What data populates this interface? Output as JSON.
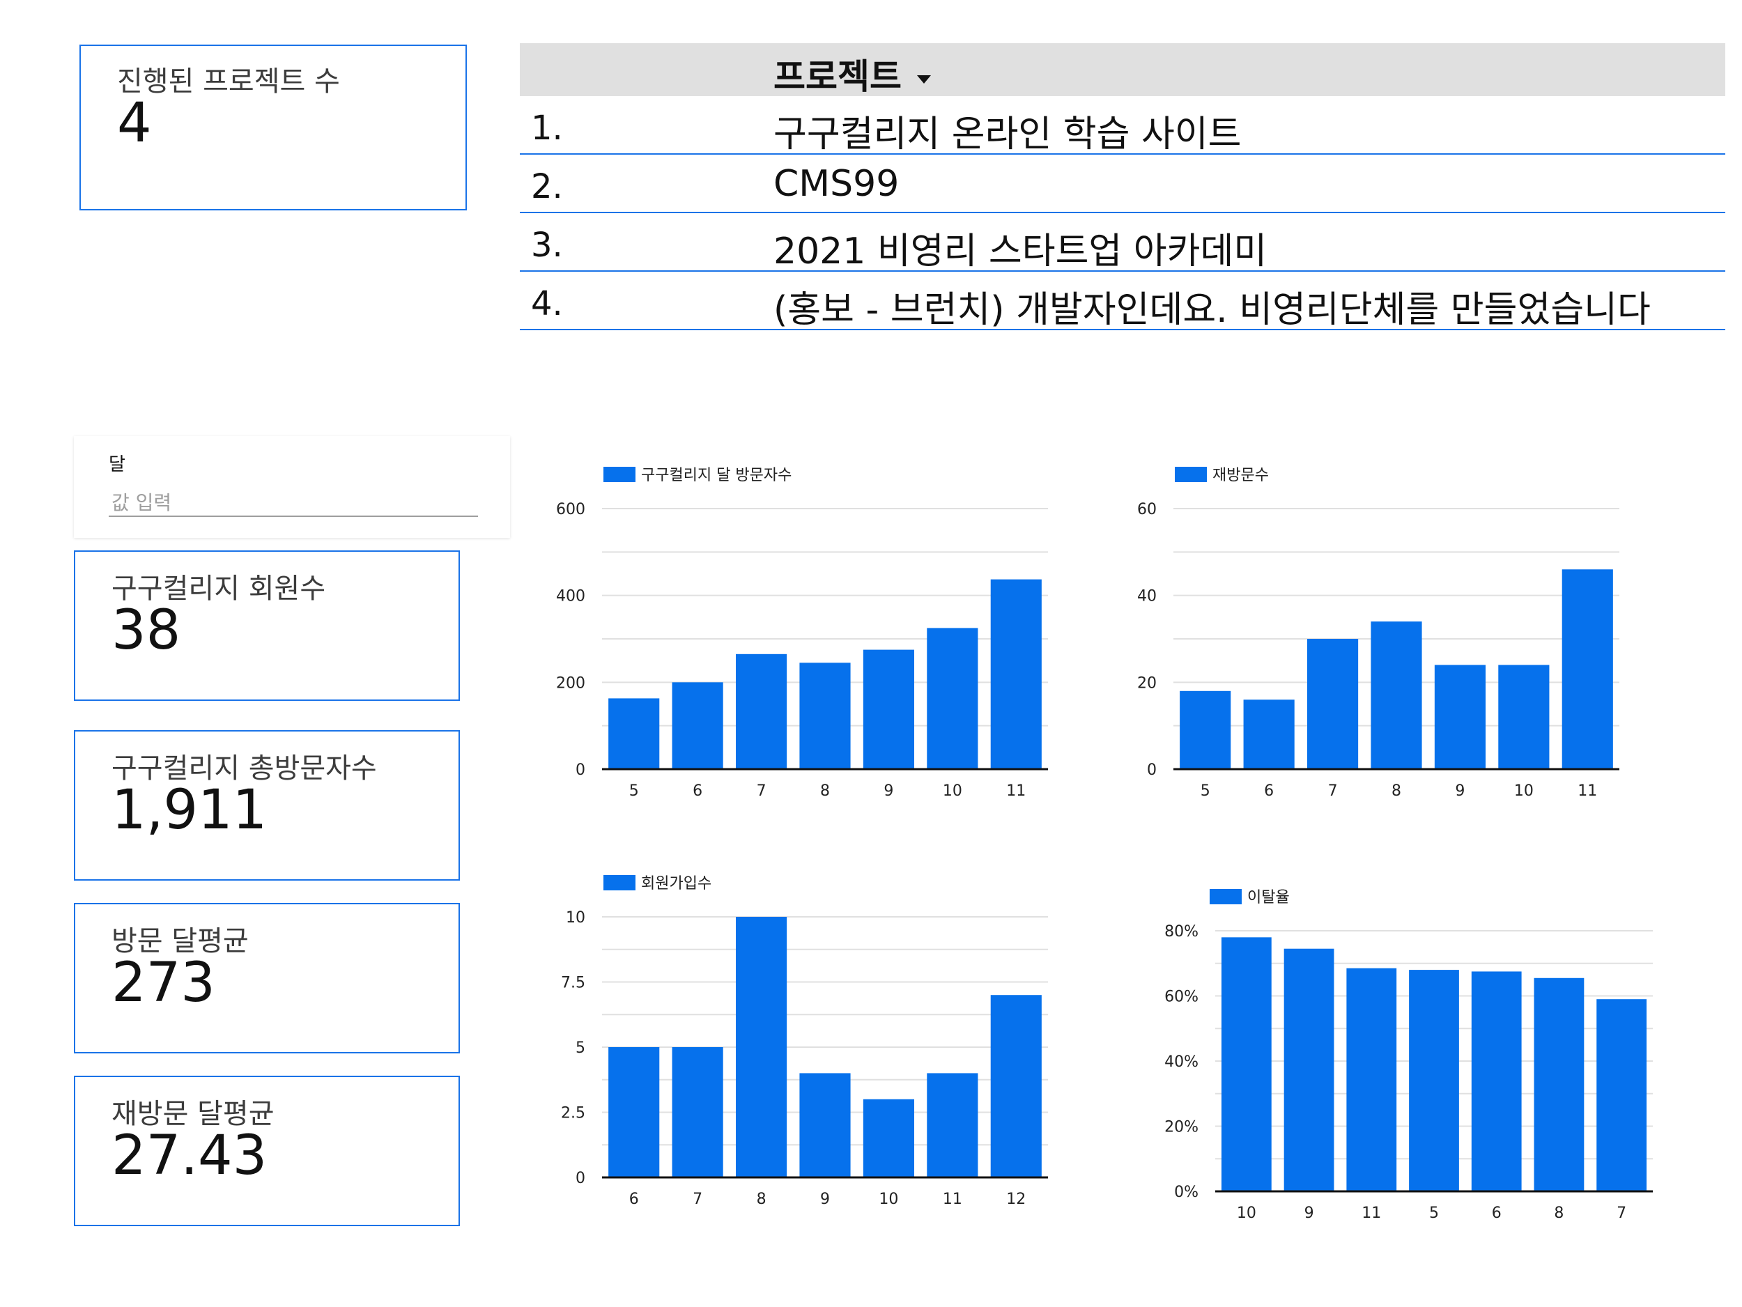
{
  "scorecards": {
    "projects": {
      "label": "진행된 프로젝트 수",
      "value": "4"
    },
    "members": {
      "label": "구구컬리지 회원수",
      "value": "38"
    },
    "total_visitors": {
      "label": "구구컬리지 총방문자수",
      "value": "1,911"
    },
    "visit_avg": {
      "label": "방문 달평균",
      "value": "273"
    },
    "revisit_avg": {
      "label": "재방문 달평균",
      "value": "27.43"
    }
  },
  "project_table": {
    "header": "프로젝트",
    "rows": [
      {
        "index": "1.",
        "name": "구구컬리지 온라인 학습 사이트"
      },
      {
        "index": "2.",
        "name": "CMS99"
      },
      {
        "index": "3.",
        "name": "2021 비영리 스타트업 아카데미"
      },
      {
        "index": "4.",
        "name": "(홍보 - 브런치) 개발자인데요. 비영리단체를 만들었습니다"
      }
    ]
  },
  "filter": {
    "label": "달",
    "placeholder": "값 입력",
    "value": ""
  },
  "colors": {
    "bar": "#0671ec",
    "grid": "#e0e0e0",
    "axis": "#111111",
    "scorecard_border": "#1a73e8",
    "table_header_bg": "#e0e0e0"
  },
  "chart_data": [
    {
      "id": "chart-visitors",
      "type": "bar",
      "legend": "구구컬리지 달 방문자수",
      "categories": [
        "5",
        "6",
        "7",
        "8",
        "9",
        "10",
        "11"
      ],
      "series": [
        {
          "name": "구구컬리지 달 방문자수",
          "values": [
            163,
            200,
            265,
            245,
            275,
            325,
            437
          ]
        }
      ],
      "yticks": [
        "0",
        "200",
        "400",
        "600"
      ],
      "ylim": [
        0,
        600
      ],
      "grid": true
    },
    {
      "id": "chart-revisits",
      "type": "bar",
      "legend": "재방문수",
      "categories": [
        "5",
        "6",
        "7",
        "8",
        "9",
        "10",
        "11"
      ],
      "series": [
        {
          "name": "재방문수",
          "values": [
            18,
            16,
            30,
            34,
            24,
            24,
            46
          ]
        }
      ],
      "yticks": [
        "0",
        "20",
        "40",
        "60"
      ],
      "ylim": [
        0,
        60
      ],
      "grid": true
    },
    {
      "id": "chart-signups",
      "type": "bar",
      "legend": "회원가입수",
      "categories": [
        "6",
        "7",
        "8",
        "9",
        "10",
        "11",
        "12"
      ],
      "series": [
        {
          "name": "회원가입수",
          "values": [
            5,
            5,
            10,
            4,
            3,
            4,
            7
          ]
        }
      ],
      "yticks": [
        "0",
        "2.5",
        "5",
        "7.5",
        "10"
      ],
      "ylim": [
        0,
        10
      ],
      "grid": true
    },
    {
      "id": "chart-churn",
      "type": "bar",
      "legend": "이탈율",
      "categories": [
        "10",
        "9",
        "11",
        "5",
        "6",
        "8",
        "7"
      ],
      "series": [
        {
          "name": "이탈율",
          "values": [
            0.78,
            0.745,
            0.685,
            0.68,
            0.675,
            0.655,
            0.59
          ]
        }
      ],
      "yticks": [
        "0%",
        "20%",
        "40%",
        "60%",
        "80%"
      ],
      "ylim": [
        0,
        0.8
      ],
      "grid": true
    }
  ]
}
